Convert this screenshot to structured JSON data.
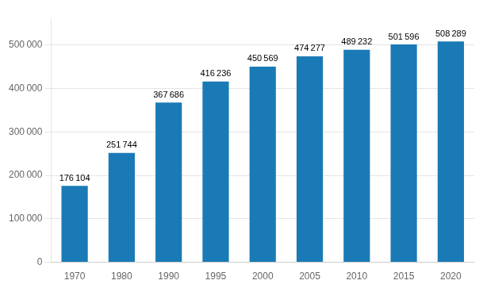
{
  "chart_data": {
    "type": "bar",
    "categories": [
      "1970",
      "1980",
      "1990",
      "1995",
      "2000",
      "2005",
      "2010",
      "2015",
      "2020"
    ],
    "values": [
      176104,
      251744,
      367686,
      416236,
      450569,
      474277,
      489232,
      501596,
      508289
    ],
    "value_labels": [
      "176 104",
      "251 744",
      "367 686",
      "416 236",
      "450 569",
      "474 277",
      "489 232",
      "501 596",
      "508 289"
    ],
    "color": "#1a7ab5",
    "ylim": [
      0,
      560000
    ],
    "yticks": [
      0,
      {
        "value": 100000,
        "label": "100 000"
      },
      {
        "value": 200000,
        "label": "200 000"
      },
      {
        "value": 300000,
        "label": "300 000"
      },
      {
        "value": 400000,
        "label": "400 000"
      },
      {
        "value": 500000,
        "label": "500 000"
      }
    ],
    "grid": true,
    "data_labels": true
  }
}
